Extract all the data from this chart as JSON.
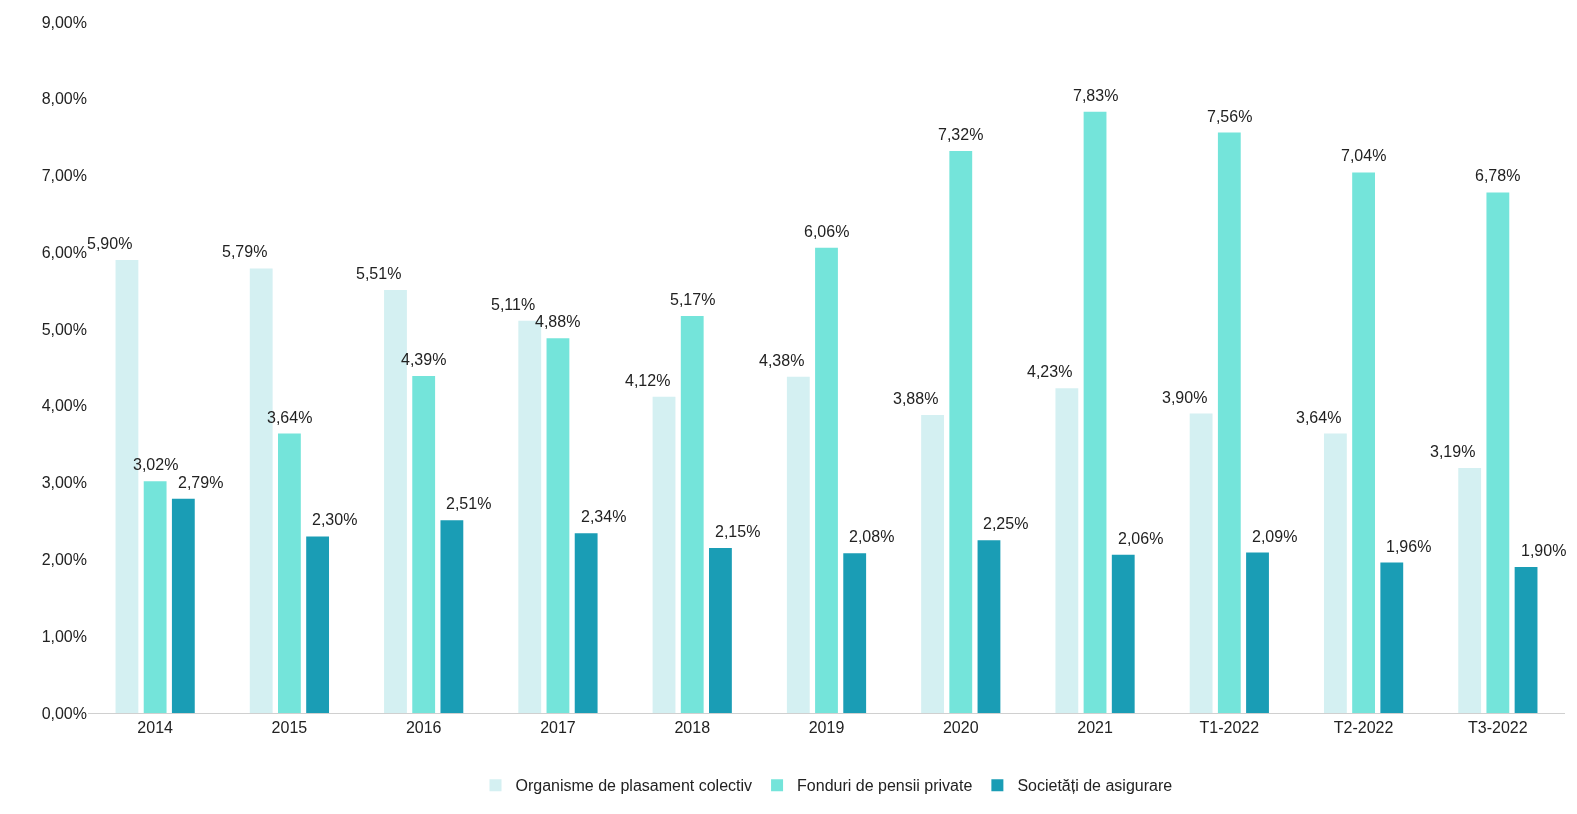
{
  "chart_data": {
    "type": "bar",
    "categories": [
      "2014",
      "2015",
      "2016",
      "2017",
      "2018",
      "2019",
      "2020",
      "2021",
      "T1-2022",
      "T2-2022",
      "T3-2022"
    ],
    "series": [
      {
        "name": "Organisme de plasament colectiv",
        "color": "#d4f0f2",
        "values": [
          5.9,
          5.79,
          5.51,
          5.11,
          4.12,
          4.38,
          3.88,
          4.23,
          3.9,
          3.64,
          3.19
        ],
        "value_labels": [
          "5,90%",
          "5,79%",
          "5,51%",
          "5,11%",
          "4,12%",
          "4,38%",
          "3,88%",
          "4,23%",
          "3,90%",
          "3,64%",
          "3,19%"
        ]
      },
      {
        "name": "Fonduri de pensii private",
        "color": "#74e4da",
        "values": [
          3.02,
          3.64,
          4.39,
          4.88,
          5.17,
          6.06,
          7.32,
          7.83,
          7.56,
          7.04,
          6.78
        ],
        "value_labels": [
          "3,02%",
          "3,64%",
          "4,39%",
          "4,88%",
          "5,17%",
          "6,06%",
          "7,32%",
          "7,83%",
          "7,56%",
          "7,04%",
          "6,78%"
        ]
      },
      {
        "name": "Societăți de asigurare",
        "color": "#1a9db5",
        "values": [
          2.79,
          2.3,
          2.51,
          2.34,
          2.15,
          2.08,
          2.25,
          2.06,
          2.09,
          1.96,
          1.9
        ],
        "value_labels": [
          "2,79%",
          "2,30%",
          "2,51%",
          "2,34%",
          "2,15%",
          "2,08%",
          "2,25%",
          "2,06%",
          "2,09%",
          "1,96%",
          "1,90%"
        ]
      }
    ],
    "ylim": [
      0,
      9
    ],
    "yticks": [
      {
        "value": 0,
        "label": "0,00%"
      },
      {
        "value": 1,
        "label": "1,00%"
      },
      {
        "value": 2,
        "label": "2,00%"
      },
      {
        "value": 3,
        "label": "3,00%"
      },
      {
        "value": 4,
        "label": "4,00%"
      },
      {
        "value": 5,
        "label": "5,00%"
      },
      {
        "value": 6,
        "label": "6,00%"
      },
      {
        "value": 7,
        "label": "7,00%"
      },
      {
        "value": 8,
        "label": "8,00%"
      },
      {
        "value": 9,
        "label": "9,00%"
      }
    ],
    "grid": false,
    "legend": "bottom"
  }
}
